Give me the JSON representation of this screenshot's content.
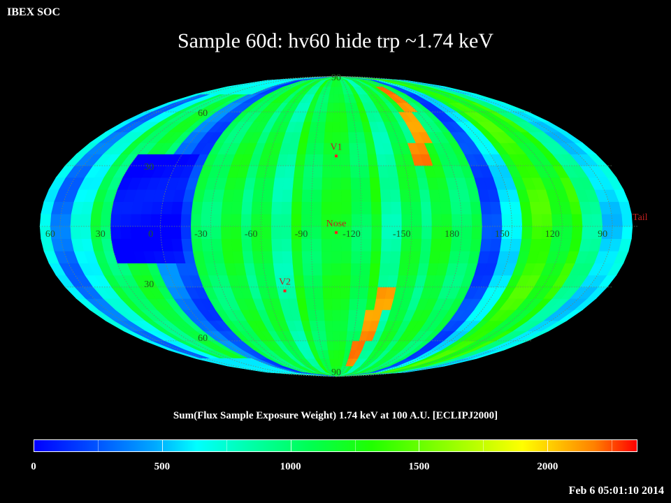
{
  "corner_label": "IBEX SOC",
  "title": "Sample 60d: hv60 hide trp ~1.74 keV",
  "colorbar": {
    "title": "Sum(Flux Sample Exposure Weight)  1.74 keV at 100 A.U. [ECLIPJ2000]",
    "min": 0,
    "max": 2350,
    "ticks": [
      "0",
      "500",
      "1000",
      "1500",
      "2000"
    ],
    "tick_values": [
      0,
      500,
      1000,
      1500,
      2000
    ]
  },
  "timestamp": "Feb  6 05:01:10 2014",
  "map": {
    "projection": "Mollweide",
    "frame": "ECLIPJ2000",
    "center_longitude_deg": 255,
    "latitude_labels": [
      "90",
      "60",
      "30",
      "30",
      "60",
      "90"
    ],
    "latitude_values": [
      90,
      60,
      30,
      -30,
      -60,
      -90
    ],
    "longitude_labels": [
      "60",
      "30",
      "0",
      "-30",
      "-60",
      "-90",
      "-120",
      "-150",
      "180",
      "150",
      "120",
      "90"
    ],
    "longitude_values": [
      60,
      30,
      0,
      -30,
      -60,
      -90,
      -120,
      -150,
      180,
      150,
      120,
      90
    ],
    "markers": [
      {
        "label": "V1",
        "lon": 255,
        "lat": 35
      },
      {
        "label": "Nose",
        "lon": 255,
        "lat": -3
      },
      {
        "label": "V2",
        "lon": 289,
        "lat": -32
      },
      {
        "label": "Tail",
        "lon": 75,
        "lat": 3
      }
    ],
    "marker_color": "#ff2020",
    "grid_color": "#6a8a6a"
  }
}
